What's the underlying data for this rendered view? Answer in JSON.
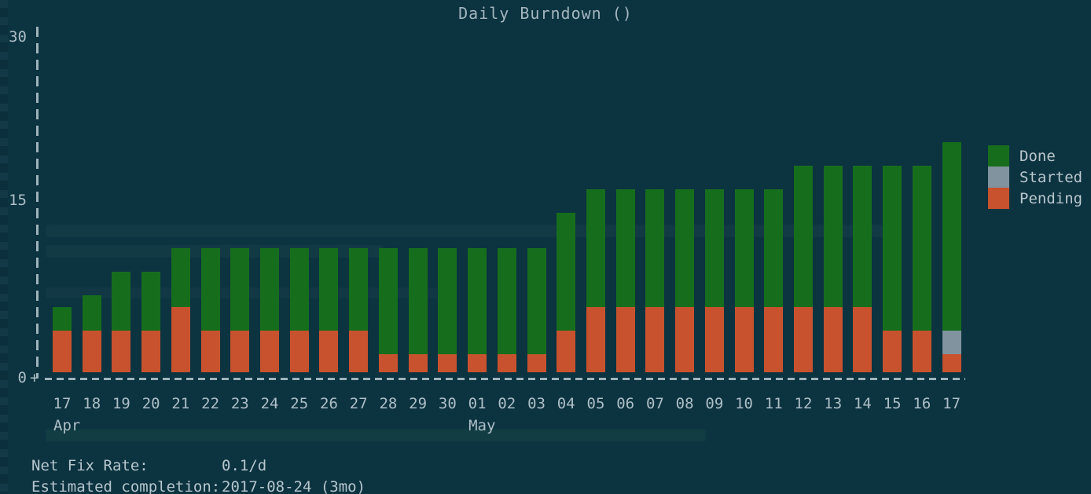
{
  "title": "Daily Burndown ()",
  "colors": {
    "background": "#0c3340",
    "done": "#166e1d",
    "started": "#81939e",
    "pending": "#c8522e",
    "axis": "#9fb4bc",
    "text": "#b6c4cb"
  },
  "axes": {
    "origin_marker": "+",
    "y_ticks": [
      "30",
      "15",
      "0"
    ]
  },
  "x_axis": {
    "day_labels": [
      "17",
      "18",
      "19",
      "20",
      "21",
      "22",
      "23",
      "24",
      "25",
      "26",
      "27",
      "28",
      "29",
      "30",
      "01",
      "02",
      "03",
      "04",
      "05",
      "06",
      "07",
      "08",
      "09",
      "10",
      "11",
      "12",
      "13",
      "14",
      "15",
      "16",
      "17"
    ],
    "month_labels": [
      {
        "label": "Apr",
        "bar_index": 0
      },
      {
        "label": "May",
        "bar_index": 14
      }
    ]
  },
  "legend": [
    {
      "label": "Done",
      "color": "#166e1d"
    },
    {
      "label": "Started",
      "color": "#81939e"
    },
    {
      "label": "Pending",
      "color": "#c8522e"
    }
  ],
  "stats": [
    {
      "label": "Net Fix Rate:",
      "value": "0.1/d"
    },
    {
      "label": "Estimated completion:",
      "value": "2017-08-24 (3mo)"
    }
  ],
  "chart_data": {
    "type": "bar",
    "stacked": true,
    "title": "Daily Burndown ()",
    "categories": [
      "Apr 17",
      "Apr 18",
      "Apr 19",
      "Apr 20",
      "Apr 21",
      "Apr 22",
      "Apr 23",
      "Apr 24",
      "Apr 25",
      "Apr 26",
      "Apr 27",
      "Apr 28",
      "Apr 29",
      "Apr 30",
      "May 01",
      "May 02",
      "May 03",
      "May 04",
      "May 05",
      "May 06",
      "May 07",
      "May 08",
      "May 09",
      "May 10",
      "May 11",
      "May 12",
      "May 13",
      "May 14",
      "May 15",
      "May 16",
      "May 17"
    ],
    "series": [
      {
        "name": "Done",
        "color": "#166e1d",
        "values": [
          2,
          3,
          5,
          5,
          5,
          7,
          7,
          7,
          7,
          7,
          7,
          9,
          9,
          9,
          9,
          9,
          9,
          10,
          10,
          10,
          10,
          10,
          10,
          10,
          10,
          12,
          12,
          12,
          14,
          14,
          16
        ]
      },
      {
        "name": "Started",
        "color": "#81939e",
        "values": [
          0,
          0,
          0,
          0,
          0,
          0,
          0,
          0,
          0,
          0,
          0,
          0,
          0,
          0,
          0,
          0,
          0,
          0,
          0,
          0,
          0,
          0,
          0,
          0,
          0,
          0,
          0,
          0,
          0,
          0,
          2
        ]
      },
      {
        "name": "Pending",
        "color": "#c8522e",
        "values": [
          4,
          4,
          4,
          4,
          6,
          4,
          4,
          4,
          4,
          4,
          4,
          2,
          2,
          2,
          2,
          2,
          2,
          4,
          6,
          6,
          6,
          6,
          6,
          6,
          6,
          6,
          6,
          6,
          4,
          4,
          2
        ]
      }
    ],
    "ylim": [
      0,
      30
    ],
    "yticks": [
      0,
      15,
      30
    ],
    "grid": false,
    "legend_position": "right"
  }
}
